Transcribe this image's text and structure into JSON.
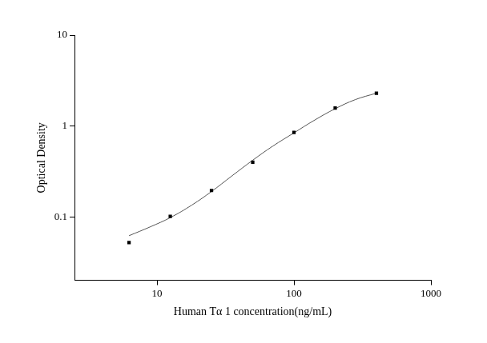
{
  "chart_data": {
    "type": "scatter",
    "x_label": "Human Tα 1 concentration(ng/mL)",
    "y_label": "Optical Density",
    "log": true,
    "grid": false,
    "xlim": [
      2.5,
      1000
    ],
    "xticks": [
      10,
      100,
      1000
    ],
    "ylim": [
      0.02,
      10
    ],
    "yticks": [
      0.1,
      1,
      10
    ],
    "series": [
      {
        "type": "scatter",
        "marker": "square",
        "color": "#000000",
        "x": [
          6.25,
          12.5,
          25,
          50,
          100,
          200,
          400
        ],
        "values": [
          0.052,
          0.101,
          0.195,
          0.4,
          0.85,
          1.58,
          2.3
        ]
      },
      {
        "type": "line",
        "line_style": "solid",
        "color": "#555555",
        "x": [
          6.25,
          9,
          12.5,
          18,
          25,
          35,
          50,
          70,
          100,
          140,
          200,
          280,
          400
        ],
        "values": [
          0.062,
          0.078,
          0.098,
          0.135,
          0.19,
          0.28,
          0.42,
          0.6,
          0.84,
          1.15,
          1.55,
          1.95,
          2.3
        ]
      }
    ]
  }
}
